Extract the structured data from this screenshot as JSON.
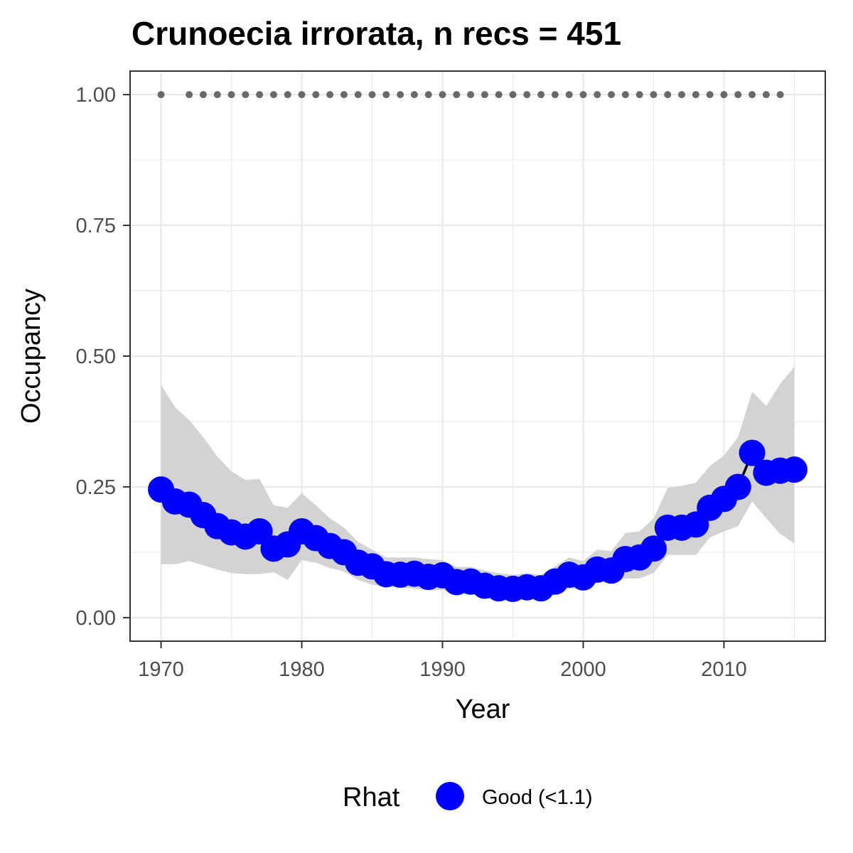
{
  "chart_data": {
    "type": "line",
    "title": "Crunoecia irrorata, n recs = 451",
    "xlabel": "Year",
    "ylabel": "Occupancy",
    "xlim": [
      1967.8,
      2017.2
    ],
    "ylim": [
      -0.045,
      1.045
    ],
    "x_ticks": [
      1970,
      1980,
      1990,
      2000,
      2010
    ],
    "x_tick_labels": [
      "1970",
      "1980",
      "1990",
      "2000",
      "2010"
    ],
    "y_ticks": [
      0,
      0.25,
      0.5,
      0.75,
      1.0
    ],
    "y_tick_labels": [
      "0.00",
      "0.25",
      "0.50",
      "0.75",
      "1.00"
    ],
    "grid": true,
    "legend_position": "bottom",
    "legend": {
      "title": "Rhat",
      "entries": [
        {
          "label": "Good (<1.1)",
          "color": "#0000ff"
        }
      ]
    },
    "colors": {
      "point": "#0000ff",
      "line": "#000000",
      "ribbon": "#d3d3d3",
      "record_dots": "#696969",
      "grid": "#ebebeb",
      "panel_border": "#333333"
    },
    "series": [
      {
        "name": "Good (<1.1)",
        "x": [
          1970,
          1971,
          1972,
          1973,
          1974,
          1975,
          1976,
          1977,
          1978,
          1979,
          1980,
          1981,
          1982,
          1983,
          1984,
          1985,
          1986,
          1987,
          1988,
          1989,
          1990,
          1991,
          1992,
          1993,
          1994,
          1995,
          1996,
          1997,
          1998,
          1999,
          2000,
          2001,
          2002,
          2003,
          2004,
          2005,
          2006,
          2007,
          2008,
          2009,
          2010,
          2011,
          2012,
          2013,
          2014,
          2015
        ],
        "y": [
          0.245,
          0.222,
          0.216,
          0.196,
          0.175,
          0.163,
          0.155,
          0.165,
          0.132,
          0.14,
          0.165,
          0.152,
          0.137,
          0.125,
          0.105,
          0.098,
          0.083,
          0.082,
          0.084,
          0.078,
          0.081,
          0.068,
          0.069,
          0.061,
          0.056,
          0.055,
          0.058,
          0.056,
          0.069,
          0.082,
          0.077,
          0.092,
          0.09,
          0.112,
          0.115,
          0.132,
          0.172,
          0.172,
          0.178,
          0.21,
          0.227,
          0.25,
          0.315,
          0.277,
          0.281,
          0.283
        ],
        "lower": [
          0.102,
          0.102,
          0.108,
          0.1,
          0.092,
          0.085,
          0.083,
          0.083,
          0.087,
          0.072,
          0.11,
          0.105,
          0.095,
          0.088,
          0.072,
          0.063,
          0.058,
          0.058,
          0.055,
          0.052,
          0.053,
          0.046,
          0.045,
          0.042,
          0.038,
          0.037,
          0.039,
          0.038,
          0.045,
          0.056,
          0.055,
          0.067,
          0.067,
          0.075,
          0.075,
          0.085,
          0.12,
          0.12,
          0.12,
          0.153,
          0.165,
          0.175,
          0.222,
          0.19,
          0.16,
          0.142
        ],
        "upper": [
          0.445,
          0.402,
          0.378,
          0.345,
          0.308,
          0.28,
          0.263,
          0.265,
          0.215,
          0.21,
          0.238,
          0.215,
          0.19,
          0.172,
          0.145,
          0.13,
          0.115,
          0.115,
          0.115,
          0.112,
          0.11,
          0.097,
          0.097,
          0.09,
          0.085,
          0.082,
          0.085,
          0.082,
          0.098,
          0.115,
          0.108,
          0.13,
          0.127,
          0.162,
          0.165,
          0.19,
          0.248,
          0.252,
          0.258,
          0.29,
          0.31,
          0.345,
          0.432,
          0.405,
          0.447,
          0.48
        ]
      }
    ],
    "record_years": [
      1970,
      1972,
      1973,
      1974,
      1975,
      1976,
      1977,
      1978,
      1979,
      1980,
      1981,
      1982,
      1983,
      1984,
      1985,
      1986,
      1987,
      1988,
      1989,
      1990,
      1991,
      1992,
      1993,
      1994,
      1995,
      1996,
      1997,
      1998,
      1999,
      2000,
      2001,
      2002,
      2003,
      2004,
      2005,
      2006,
      2007,
      2008,
      2009,
      2010,
      2011,
      2012,
      2013,
      2014
    ],
    "record_value": 1.0
  }
}
